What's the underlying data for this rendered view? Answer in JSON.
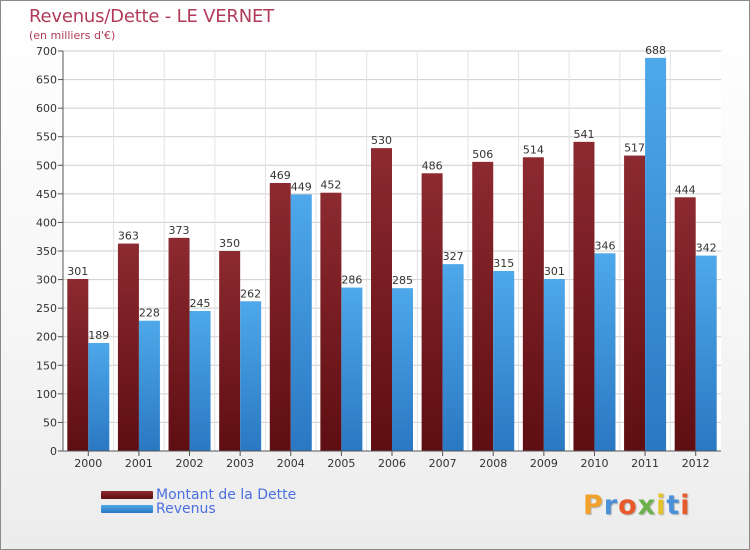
{
  "header": {
    "title": "Revenus/Dette - LE VERNET",
    "subtitle": "(en milliers d'€)"
  },
  "colors": {
    "debt": "#7a1e24",
    "revenue": "#3f9ae0",
    "title": "#b23a5a"
  },
  "legend": {
    "items": [
      {
        "label": "Montant de la Dette",
        "color": "#7a1e24"
      },
      {
        "label": "Revenus",
        "color": "#3f9ae0"
      }
    ]
  },
  "logo": {
    "text": "Proxiti",
    "letter_colors": [
      "#f2a12a",
      "#4a90d9",
      "#e85a2a",
      "#6ab04c",
      "#e6c229",
      "#4a90d9",
      "#e85a2a"
    ]
  },
  "chart_data": {
    "type": "bar",
    "title": "Revenus/Dette - LE VERNET",
    "subtitle": "(en milliers d'€)",
    "categories": [
      "2000",
      "2001",
      "2002",
      "2003",
      "2004",
      "2005",
      "2006",
      "2007",
      "2008",
      "2009",
      "2010",
      "2011",
      "2012"
    ],
    "series": [
      {
        "name": "Montant de la Dette",
        "values": [
          301,
          363,
          373,
          350,
          469,
          452,
          530,
          486,
          506,
          514,
          541,
          517,
          444
        ]
      },
      {
        "name": "Revenus",
        "values": [
          189,
          228,
          245,
          262,
          449,
          286,
          285,
          327,
          315,
          301,
          346,
          688,
          342
        ]
      }
    ],
    "ylim": [
      0,
      700
    ],
    "ytick_step": 50,
    "grid": true,
    "legend_position": "bottom-left"
  }
}
